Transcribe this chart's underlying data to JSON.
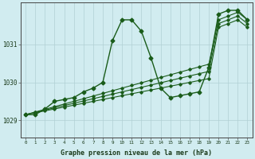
{
  "title": "Graphe pression niveau de la mer (hPa)",
  "bg_color": "#d1ecf0",
  "grid_color": "#b0d0d4",
  "line_color": "#1a5c1a",
  "x_labels": [
    "0",
    "1",
    "2",
    "3",
    "4",
    "5",
    "6",
    "7",
    "8",
    "9",
    "10",
    "11",
    "12",
    "13",
    "14",
    "15",
    "16",
    "17",
    "18",
    "19",
    "20",
    "21",
    "22",
    "23"
  ],
  "ylim": [
    1028.55,
    1032.1
  ],
  "yticks": [
    1029,
    1030,
    1031
  ],
  "wavy": [
    1029.15,
    1029.15,
    1029.3,
    1029.5,
    1029.55,
    1029.6,
    1029.75,
    1029.85,
    1030.0,
    1031.1,
    1031.65,
    1031.65,
    1031.35,
    1030.65,
    1029.85,
    1029.6,
    1029.65,
    1029.7,
    1029.75,
    1030.4,
    1031.8,
    1031.9,
    1031.9,
    1031.65
  ],
  "trend1": [
    1029.15,
    1029.22,
    1029.29,
    1029.36,
    1029.43,
    1029.5,
    1029.57,
    1029.64,
    1029.71,
    1029.78,
    1029.85,
    1029.92,
    1029.99,
    1030.06,
    1030.13,
    1030.2,
    1030.27,
    1030.34,
    1030.41,
    1030.48,
    1031.65,
    1031.75,
    1031.85,
    1031.65
  ],
  "trend2": [
    1029.15,
    1029.21,
    1029.27,
    1029.33,
    1029.39,
    1029.45,
    1029.51,
    1029.57,
    1029.63,
    1029.69,
    1029.75,
    1029.81,
    1029.87,
    1029.93,
    1029.99,
    1030.05,
    1030.11,
    1030.17,
    1030.23,
    1030.29,
    1031.55,
    1031.65,
    1031.75,
    1031.55
  ],
  "trend3": [
    1029.15,
    1029.2,
    1029.25,
    1029.3,
    1029.35,
    1029.4,
    1029.45,
    1029.5,
    1029.55,
    1029.6,
    1029.65,
    1029.7,
    1029.75,
    1029.8,
    1029.85,
    1029.9,
    1029.95,
    1030.0,
    1030.05,
    1030.1,
    1031.45,
    1031.55,
    1031.65,
    1031.45
  ]
}
